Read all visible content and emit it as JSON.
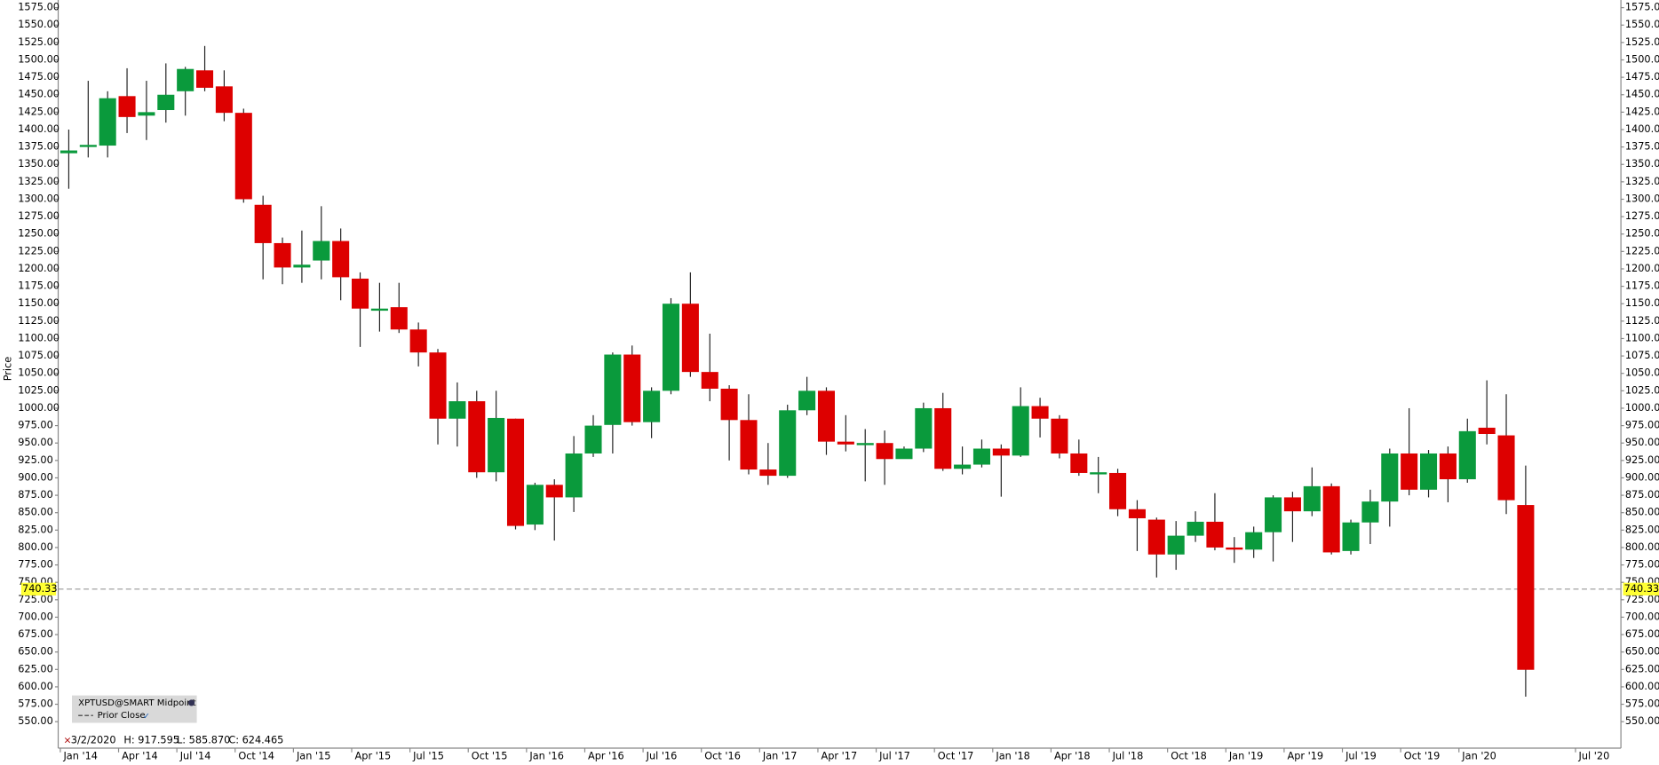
{
  "chart_data": {
    "type": "candlestick",
    "y_label": "Price",
    "legend": [
      "XPTUSD@SMART Midpoint",
      "Prior Close"
    ],
    "info_labels": [
      "3/2/2020",
      "H: 917.595",
      "L: 585.870",
      "C: 624.465"
    ],
    "categories": [
      "Jan '14",
      null,
      null,
      "Apr '14",
      null,
      null,
      "Jul '14",
      null,
      null,
      "Oct '14",
      null,
      null,
      "Jan '15",
      null,
      null,
      "Apr '15",
      null,
      null,
      "Jul '15",
      null,
      null,
      "Oct '15",
      null,
      null,
      "Jan '16",
      null,
      null,
      "Apr '16",
      null,
      null,
      "Jul '16",
      null,
      null,
      "Oct '16",
      null,
      null,
      "Jan '17",
      null,
      null,
      "Apr '17",
      null,
      null,
      "Jul '17",
      null,
      null,
      "Oct '17",
      null,
      null,
      "Jan '18",
      null,
      null,
      "Apr '18",
      null,
      null,
      "Jul '18",
      null,
      null,
      "Oct '18",
      null,
      null,
      "Jan '19",
      null,
      null,
      "Apr '19",
      null,
      null,
      "Jul '19",
      null,
      null,
      "Oct '19",
      null,
      null,
      "Jan '20",
      null,
      null,
      null,
      null,
      null,
      "Jul '20"
    ],
    "open": [
      1366,
      1376,
      1377,
      1448,
      1420,
      1428,
      1455,
      1485,
      1462,
      1424,
      1292,
      1237,
      1202,
      1212,
      1240,
      1186,
      1141,
      1145,
      1113,
      1080,
      985,
      1010,
      908,
      985,
      833,
      890,
      872,
      935,
      976,
      1077,
      980,
      1025,
      1150,
      1052,
      1028,
      983,
      912,
      903,
      997,
      1025,
      952,
      948,
      950,
      927,
      942,
      1000,
      913,
      919,
      942,
      932,
      1003,
      985,
      935,
      907,
      907,
      855,
      840,
      790,
      817,
      837,
      800,
      797,
      822,
      872,
      852,
      888,
      795,
      836,
      866,
      935,
      883,
      935,
      898,
      972,
      961,
      861,
      null,
      null,
      null
    ],
    "high": [
      1400,
      1470,
      1455,
      1488,
      1470,
      1495,
      1490,
      1520,
      1485,
      1430,
      1305,
      1245,
      1255,
      1290,
      1258,
      1195,
      1180,
      1180,
      1123,
      1085,
      1037,
      1025,
      1025,
      985,
      893,
      898,
      960,
      990,
      1080,
      1090,
      1030,
      1158,
      1195,
      1107,
      1033,
      1020,
      950,
      1005,
      1045,
      1030,
      990,
      970,
      968,
      945,
      1008,
      1022,
      945,
      955,
      948,
      1030,
      1015,
      990,
      955,
      930,
      913,
      868,
      843,
      838,
      852,
      878,
      815,
      830,
      875,
      880,
      915,
      892,
      840,
      883,
      942,
      1000,
      940,
      945,
      985,
      1040,
      1020,
      917.595,
      null,
      null,
      null
    ],
    "low": [
      1315,
      1360,
      1360,
      1395,
      1385,
      1410,
      1420,
      1455,
      1412,
      1295,
      1185,
      1178,
      1180,
      1185,
      1155,
      1088,
      1110,
      1108,
      1060,
      948,
      945,
      900,
      895,
      826,
      825,
      810,
      851,
      930,
      935,
      975,
      957,
      1020,
      1045,
      1010,
      925,
      905,
      890,
      900,
      990,
      933,
      938,
      895,
      890,
      928,
      937,
      910,
      905,
      915,
      873,
      930,
      958,
      928,
      903,
      878,
      845,
      795,
      757,
      768,
      808,
      796,
      778,
      785,
      780,
      808,
      845,
      790,
      790,
      805,
      830,
      875,
      872,
      865,
      893,
      948,
      848,
      585.87,
      null,
      null,
      null
    ],
    "close": [
      1370,
      1378,
      1445,
      1418,
      1425,
      1450,
      1487,
      1460,
      1424,
      1300,
      1237,
      1202,
      1206,
      1240,
      1188,
      1143,
      1143,
      1113,
      1080,
      985,
      1010,
      908,
      986,
      831,
      890,
      872,
      935,
      975,
      1077,
      980,
      1025,
      1150,
      1052,
      1028,
      983,
      912,
      903,
      997,
      1025,
      952,
      948,
      950,
      927,
      942,
      1000,
      913,
      919,
      942,
      932,
      1003,
      985,
      935,
      907,
      908,
      855,
      842,
      790,
      817,
      837,
      800,
      797,
      822,
      872,
      852,
      888,
      793,
      836,
      866,
      935,
      883,
      935,
      898,
      967,
      963,
      868,
      624.465,
      null,
      null,
      null
    ],
    "up_color": "#0a9a3c",
    "down_color": "#dd0000",
    "prior_close": 740.33,
    "ylim": [
      512,
      1586
    ],
    "yticks": [
      {
        "value": 550,
        "label": "550.00"
      },
      {
        "value": 575,
        "label": "575.00"
      },
      {
        "value": 600,
        "label": "600.00"
      },
      {
        "value": 625,
        "label": "625.00"
      },
      {
        "value": 650,
        "label": "650.00"
      },
      {
        "value": 675,
        "label": "675.00"
      },
      {
        "value": 700,
        "label": "700.00"
      },
      {
        "value": 725,
        "label": "725.00"
      },
      {
        "value": 750,
        "label": "750.00"
      },
      {
        "value": 775,
        "label": "775.00"
      },
      {
        "value": 800,
        "label": "800.00"
      },
      {
        "value": 825,
        "label": "825.00"
      },
      {
        "value": 850,
        "label": "850.00"
      },
      {
        "value": 875,
        "label": "875.00"
      },
      {
        "value": 900,
        "label": "900.00"
      },
      {
        "value": 925,
        "label": "925.00"
      },
      {
        "value": 950,
        "label": "950.00"
      },
      {
        "value": 975,
        "label": "975.00"
      },
      {
        "value": 1000,
        "label": "1000.00"
      },
      {
        "value": 1025,
        "label": "1025.00"
      },
      {
        "value": 1050,
        "label": "1050.00"
      },
      {
        "value": 1075,
        "label": "1075.00"
      },
      {
        "value": 1100,
        "label": "1100.00"
      },
      {
        "value": 1125,
        "label": "1125.00"
      },
      {
        "value": 1150,
        "label": "1150.00"
      },
      {
        "value": 1175,
        "label": "1175.00"
      },
      {
        "value": 1200,
        "label": "1200.00"
      },
      {
        "value": 1225,
        "label": "1225.00"
      },
      {
        "value": 1250,
        "label": "1250.00"
      },
      {
        "value": 1275,
        "label": "1275.00"
      },
      {
        "value": 1300,
        "label": "1300.00"
      },
      {
        "value": 1325,
        "label": "1325.00"
      },
      {
        "value": 1350,
        "label": "1350.00"
      },
      {
        "value": 1375,
        "label": "1375.00"
      },
      {
        "value": 1400,
        "label": "1400.00"
      },
      {
        "value": 1425,
        "label": "1425.00"
      },
      {
        "value": 1450,
        "label": "1450.00"
      },
      {
        "value": 1475,
        "label": "1475.00"
      },
      {
        "value": 1500,
        "label": "1500.00"
      },
      {
        "value": 1525,
        "label": "1525.00"
      },
      {
        "value": 1550,
        "label": "1550.00"
      },
      {
        "value": 1575,
        "label": "1575.00"
      }
    ]
  }
}
